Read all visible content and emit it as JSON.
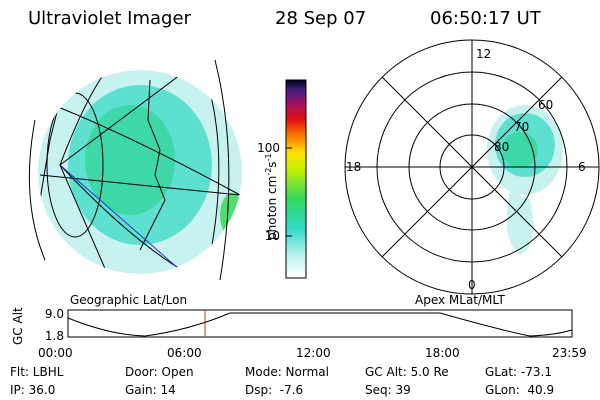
{
  "header": {
    "instrument": "Ultraviolet Imager",
    "date": "28 Sep 07",
    "time": "06:50:17 UT"
  },
  "colorbar": {
    "label": [
      "photon cm",
      "-2",
      "s",
      "-1"
    ],
    "ticks": [
      "100",
      "10"
    ]
  },
  "polar": {
    "mlt_labels": [
      "12",
      "18",
      "6",
      "0"
    ],
    "lat_labels": [
      "80",
      "70",
      "60"
    ]
  },
  "panel_labels": {
    "left": "Geographic Lat/Lon",
    "right": "Apex MLat/MLT"
  },
  "timeline": {
    "ylabel": "GC Alt",
    "yticks": [
      "9.0",
      "1.8"
    ],
    "xticks": [
      "00:00",
      "06:00",
      "12:00",
      "18:00",
      "23:59"
    ]
  },
  "footer": {
    "rows": [
      [
        "Flt: LBHL",
        "Door: Open",
        "Mode: Normal",
        "GC Alt: 5.0 Re",
        "GLat: -73.1"
      ],
      [
        "IP: 36.0",
        "Gain: 14",
        "Dsp:  -7.6",
        "Seq: 39",
        "GLon:  40.9"
      ]
    ]
  }
}
